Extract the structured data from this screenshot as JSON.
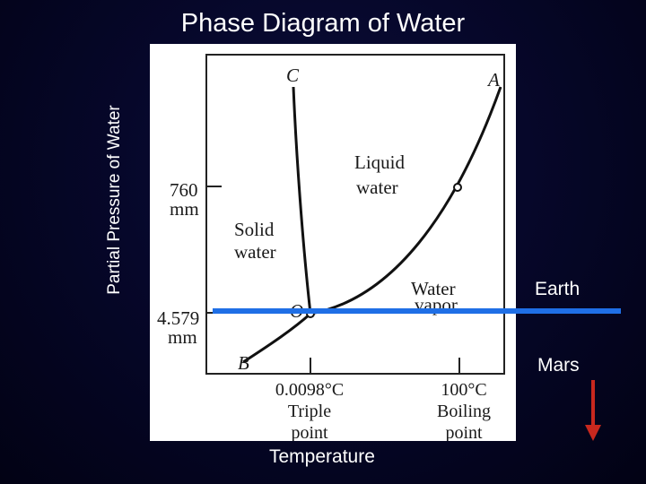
{
  "slide": {
    "title": "Phase Diagram of Water",
    "y_axis_label": "Partial Pressure of Water",
    "x_axis_label": "Temperature"
  },
  "diagram": {
    "point_labels": {
      "c": "C",
      "a": "A",
      "b": "B",
      "o": "O"
    },
    "regions": {
      "liquid": [
        "Liquid",
        "water"
      ],
      "solid": [
        "Solid",
        "water"
      ],
      "vapor": [
        "Water",
        "vapor"
      ]
    },
    "y_ticks": {
      "p760": [
        "760",
        "mm"
      ],
      "p4579": [
        "4.579",
        "mm"
      ]
    },
    "x_ticks": {
      "triple": [
        "0.0098°C",
        "Triple",
        "point"
      ],
      "boiling": [
        "100°C",
        "Boiling",
        "point"
      ]
    }
  },
  "annotations": {
    "earth": "Earth",
    "mars": "Mars",
    "earth_line_color": "#1f6fe6",
    "mars_arrow_color": "#c8281e"
  }
}
